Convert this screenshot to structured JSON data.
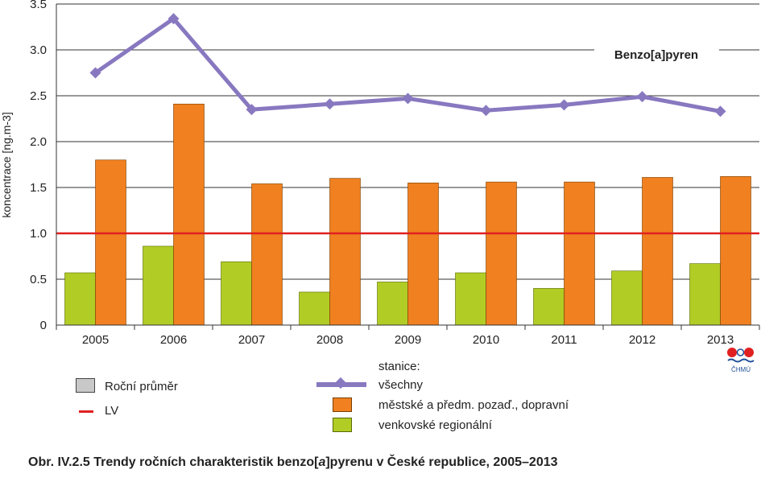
{
  "chart_data": {
    "type": "bar",
    "categories": [
      "2005",
      "2006",
      "2007",
      "2008",
      "2009",
      "2010",
      "2011",
      "2012",
      "2013"
    ],
    "series": [
      {
        "name": "venkovské regionální",
        "type": "bar",
        "color": "#b2cc26",
        "values": [
          0.57,
          0.86,
          0.69,
          0.36,
          0.47,
          0.57,
          0.4,
          0.59,
          0.67
        ]
      },
      {
        "name": "městské a předm. pozaď., dopravní",
        "type": "bar",
        "color": "#f08020",
        "values": [
          1.8,
          2.41,
          1.54,
          1.6,
          1.55,
          1.56,
          1.56,
          1.61,
          1.62
        ]
      },
      {
        "name": "všechny",
        "type": "line",
        "color": "#8878c0",
        "marker": "diamond",
        "values": [
          2.75,
          3.34,
          2.35,
          2.41,
          2.47,
          2.34,
          2.4,
          2.49,
          2.33
        ]
      }
    ],
    "limit_line": {
      "name": "LV",
      "value": 1.0,
      "color": "#e02020"
    },
    "ylabel": "koncentrace [ng.m-3]",
    "ylim": [
      0,
      3.5
    ],
    "yticks": [
      "0",
      "0.5",
      "1.0",
      "1.5",
      "2.0",
      "2.5",
      "3.0",
      "3.5"
    ],
    "grid": true,
    "annotation": "Benzo[a]pyren"
  },
  "legend": {
    "heading": "stanice:",
    "annual_mean": "Roční průměr",
    "lv": "LV",
    "all": "všechny",
    "urban": "městské a předm. pozaď., dopravní",
    "rural": "venkovské regionální"
  },
  "caption": {
    "prefix": "Obr. IV.2.5  Trendy ročních charakteristik benzo[",
    "italic": "a",
    "suffix": "]pyrenu v České republice, 2005–2013"
  },
  "logo_text": "ČHMÚ"
}
